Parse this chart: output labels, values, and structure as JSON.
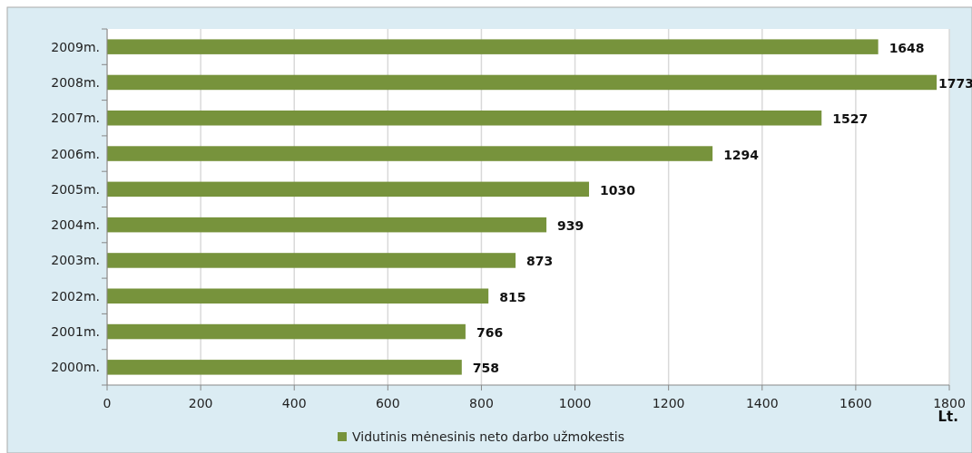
{
  "chart_data": {
    "type": "bar",
    "orientation": "horizontal",
    "categories": [
      "2009m.",
      "2008m.",
      "2007m.",
      "2006m.",
      "2005m.",
      "2004m.",
      "2003m.",
      "2002m.",
      "2001m.",
      "2000m."
    ],
    "series": [
      {
        "name": "Vidutinis mėnesinis neto darbo užmokestis",
        "color": "#77933c",
        "values": [
          1648,
          1773,
          1527,
          1294,
          1030,
          939,
          873,
          815,
          766,
          758
        ]
      }
    ],
    "xlim": [
      0,
      1800
    ],
    "xticks": [
      0,
      200,
      400,
      600,
      800,
      1000,
      1200,
      1400,
      1600,
      1800
    ],
    "xlabel": "Lt.",
    "grid": "x",
    "legend": "bottom",
    "data_labels": true
  }
}
